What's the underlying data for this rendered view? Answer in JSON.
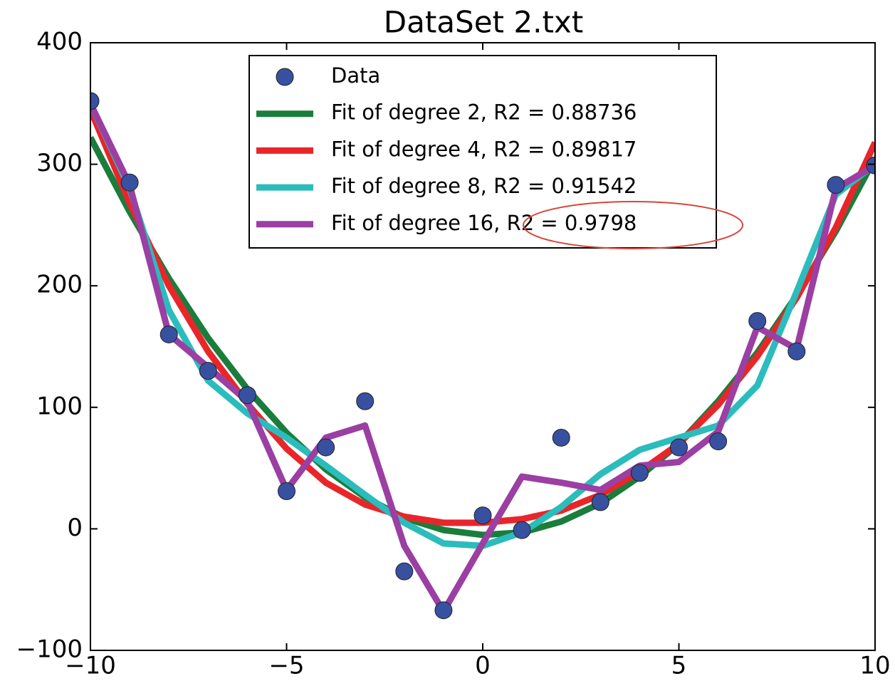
{
  "chart_data": {
    "type": "line",
    "title": "DataSet 2.txt",
    "x": [
      -10,
      -9,
      -8,
      -7,
      -6,
      -5,
      -4,
      -3,
      -2,
      -1,
      0,
      1,
      2,
      3,
      4,
      5,
      6,
      7,
      8,
      9,
      10
    ],
    "series": [
      {
        "name": "Data",
        "kind": "scatter",
        "color": "#3850a0",
        "values": [
          352,
          285,
          160,
          130,
          110,
          31,
          67,
          105,
          -35,
          -67,
          11,
          -1,
          75,
          22,
          46,
          67,
          72,
          171,
          146,
          283,
          299
        ]
      },
      {
        "name": "Fit of degree 2, R2 = 0.88736",
        "kind": "line",
        "color": "#1b7d3c",
        "values": [
          322,
          261,
          206,
          157,
          115,
          79,
          49,
          26,
          9,
          -1,
          -5,
          -3,
          6,
          21,
          43,
          70,
          105,
          145,
          192,
          245,
          305
        ]
      },
      {
        "name": "Fit of degree 4, R2 = 0.89817",
        "kind": "line",
        "color": "#e8262a",
        "values": [
          345,
          268,
          200,
          146,
          103,
          66,
          38,
          20,
          10,
          5,
          5,
          8,
          15,
          28,
          47,
          70,
          102,
          142,
          190,
          248,
          318
        ]
      },
      {
        "name": "Fit of degree 8, R2 = 0.91542",
        "kind": "line",
        "color": "#2bbcbc",
        "values": [
          350,
          280,
          180,
          122,
          95,
          75,
          52,
          28,
          5,
          -12,
          -14,
          -3,
          18,
          45,
          65,
          75,
          85,
          118,
          195,
          275,
          300
        ]
      },
      {
        "name": "Fit of degree 16, R2 = 0.9798",
        "kind": "line",
        "color": "#9b3fa3",
        "values": [
          350,
          283,
          160,
          133,
          105,
          32,
          75,
          85,
          -14,
          -68,
          -12,
          43,
          38,
          32,
          52,
          55,
          80,
          166,
          148,
          280,
          299
        ]
      }
    ],
    "xlim": [
      -10,
      10
    ],
    "ylim": [
      -100,
      400
    ],
    "xticks": [
      {
        "value": -10,
        "label": "−10"
      },
      {
        "value": -5,
        "label": "−5"
      },
      0,
      5,
      10
    ],
    "yticks": [
      {
        "value": -100,
        "label": "−100"
      },
      0,
      100,
      200,
      300,
      400
    ],
    "legend": "upper center"
  }
}
